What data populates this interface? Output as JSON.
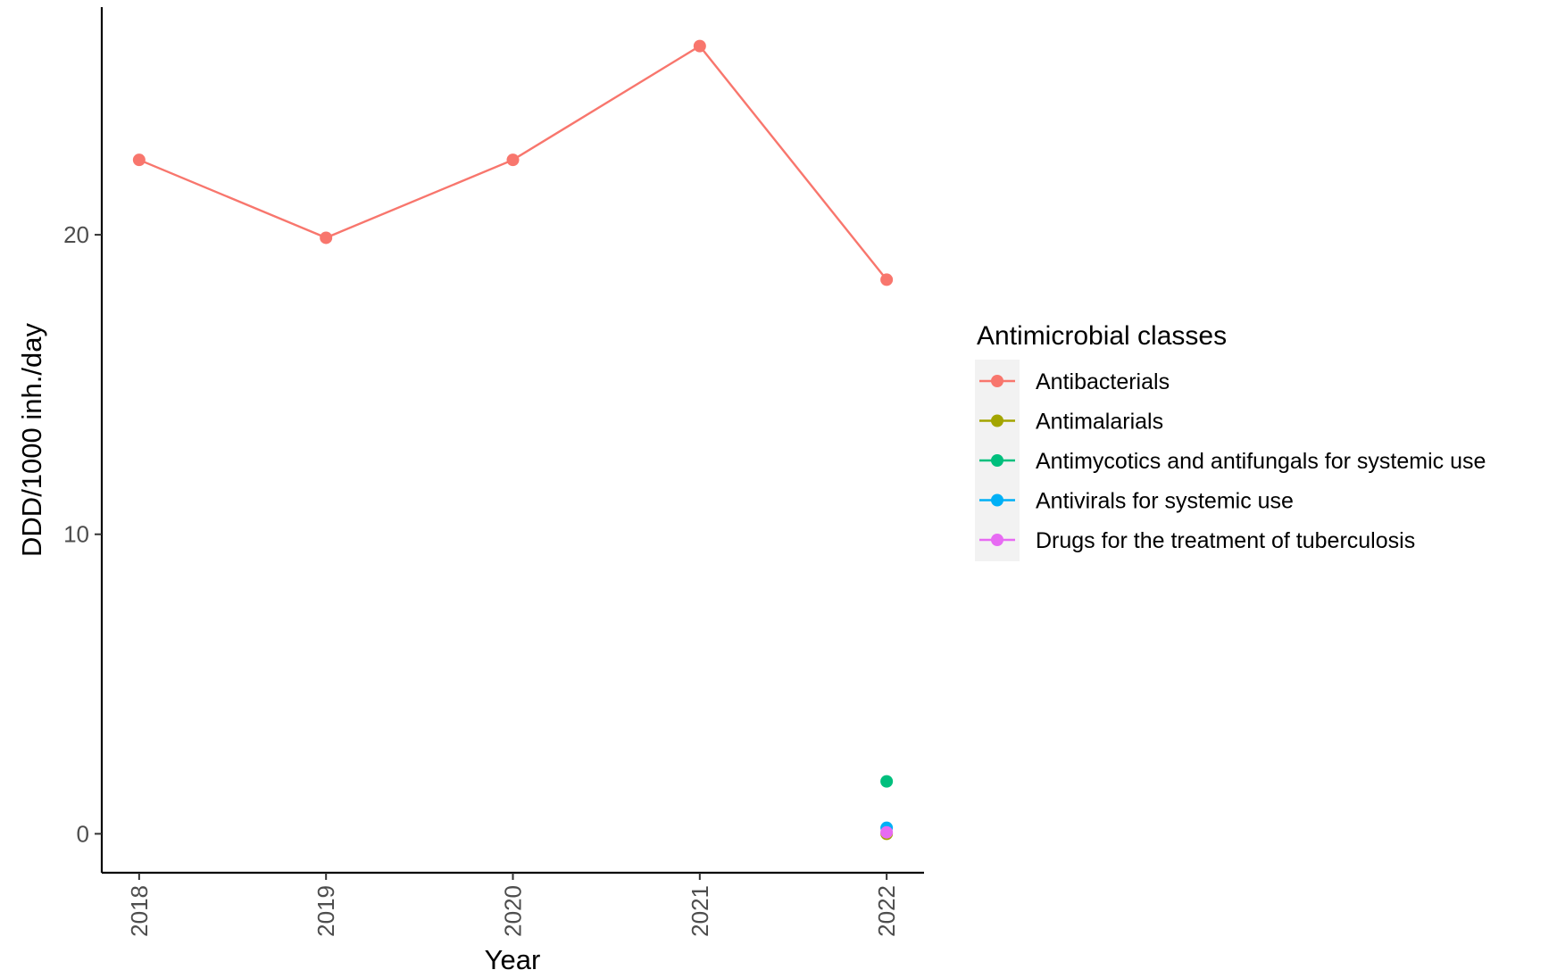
{
  "chart_data": {
    "type": "line",
    "title": "",
    "xlabel": "Year",
    "ylabel": "DDD/1000 inh./day",
    "x": [
      2018,
      2019,
      2020,
      2021,
      2022
    ],
    "x_tick_labels": [
      "2018",
      "2019",
      "2020",
      "2021",
      "2022"
    ],
    "y_ticks": [
      0,
      10,
      20
    ],
    "y_tick_labels": [
      "0",
      "10",
      "20"
    ],
    "xlim": [
      2017.8,
      2022.2
    ],
    "ylim": [
      -1.3,
      27.6
    ],
    "grid": false,
    "legend": {
      "title": "Antimicrobial classes",
      "placement": "right"
    },
    "series": [
      {
        "name": "Antibacterials",
        "color": "#F8766D",
        "x": [
          2018,
          2019,
          2020,
          2021,
          2022
        ],
        "values": [
          22.5,
          19.9,
          22.5,
          26.3,
          18.5
        ]
      },
      {
        "name": "Antimalarials",
        "color": "#A3A500",
        "x": [
          2022
        ],
        "values": [
          0.0
        ]
      },
      {
        "name": "Antimycotics and antifungals for systemic use",
        "color": "#00BF7D",
        "x": [
          2022
        ],
        "values": [
          1.75
        ]
      },
      {
        "name": "Antivirals for systemic use",
        "color": "#00B0F6",
        "x": [
          2022
        ],
        "values": [
          0.2
        ]
      },
      {
        "name": "Drugs for the treatment of tuberculosis",
        "color": "#E76BF3",
        "x": [
          2022
        ],
        "values": [
          0.05
        ]
      }
    ]
  }
}
